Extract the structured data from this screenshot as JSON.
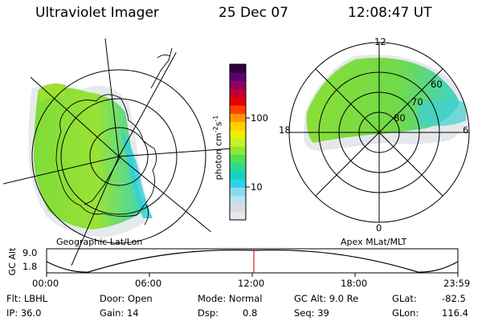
{
  "header": {
    "title": "Ultraviolet Imager",
    "date": "25 Dec 07",
    "time": "12:08:47 UT"
  },
  "left_map": {
    "caption": "Geographic Lat/Lon"
  },
  "right_map": {
    "caption": "Apex MLat/MLT",
    "mlt_labels": {
      "top": "12",
      "left": "18",
      "right": "6",
      "bottom": "0"
    },
    "lat_labels": [
      "60",
      "70",
      "80"
    ]
  },
  "colorbar": {
    "unit_label": "photon cm",
    "unit_exp1": "-2",
    "unit_s": "s",
    "unit_exp2": "-1",
    "tick_100": "100",
    "tick_10": "10",
    "colors": [
      "#e8e8ec",
      "#d8dce6",
      "#c0e0ec",
      "#88dcec",
      "#30d0e8",
      "#10d4c0",
      "#30d890",
      "#50e050",
      "#90e830",
      "#c8f028",
      "#ecf000",
      "#ffd000",
      "#ff9800",
      "#ff4000",
      "#e80000",
      "#c00030",
      "#900060",
      "#600070",
      "#300040"
    ]
  },
  "altitude_plot": {
    "ylabel": "GC Alt",
    "y_top": "9.0",
    "y_bottom": "1.8",
    "x_ticks": [
      "00:00",
      "06:00",
      "12:00",
      "18:00",
      "23:59"
    ],
    "marker_color": "#e02020"
  },
  "info": {
    "filter": "Flt: LBHL",
    "ip": "IP: 36.0",
    "door": "Door: Open",
    "gain": "Gain: 14",
    "mode": "Mode: Normal",
    "dsp_label": "Dsp:",
    "dsp_value": "0.8",
    "gc_alt": "GC Alt: 9.0 Re",
    "seq": "Seq: 39",
    "glat_label": "GLat:",
    "glat_value": "-82.5",
    "glon_label": "GLon:",
    "glon_value": "116.4"
  }
}
